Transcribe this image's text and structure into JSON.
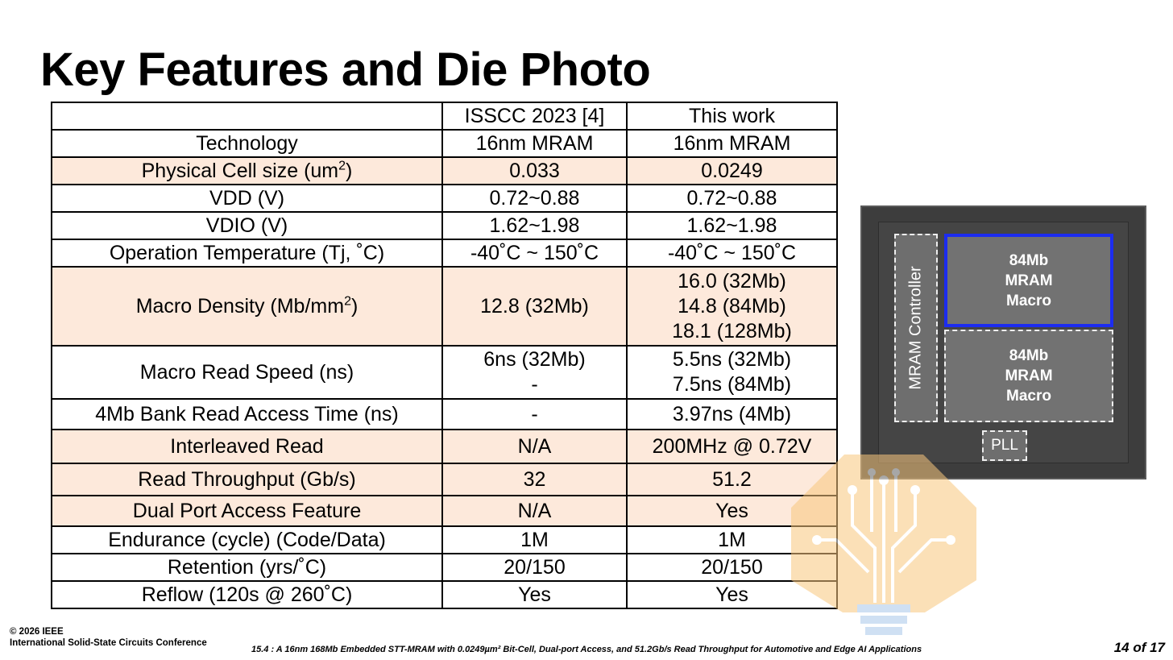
{
  "title": "Key Features and Die Photo",
  "table": {
    "headers": [
      "",
      "ISSCC 2023 [4]",
      "This work"
    ],
    "rows": [
      {
        "param": "Technology",
        "isscc": [
          "16nm MRAM"
        ],
        "work": [
          "16nm MRAM"
        ],
        "hl": false
      },
      {
        "param": "Physical Cell size (um",
        "param_sup": "2",
        "param_tail": ")",
        "isscc": [
          "0.033"
        ],
        "work": [
          "0.0249"
        ],
        "hl": true
      },
      {
        "param": "VDD (V)",
        "isscc": [
          "0.72~0.88"
        ],
        "work": [
          "0.72~0.88"
        ],
        "hl": false
      },
      {
        "param": "VDIO (V)",
        "isscc": [
          "1.62~1.98"
        ],
        "work": [
          "1.62~1.98"
        ],
        "hl": false
      },
      {
        "param": "Operation Temperature (Tj, ˚C)",
        "isscc": [
          "-40˚C ~ 150˚C"
        ],
        "work": [
          "-40˚C ~ 150˚C"
        ],
        "hl": false
      },
      {
        "param": "Macro Density (Mb/mm",
        "param_sup": "2",
        "param_tail": ")",
        "isscc": [
          "12.8 (32Mb)"
        ],
        "work": [
          "16.0 (32Mb)",
          "14.8 (84Mb)",
          "18.1 (128Mb)"
        ],
        "hl": true
      },
      {
        "param": "Macro Read Speed (ns)",
        "isscc": [
          "6ns (32Mb)",
          "-"
        ],
        "work": [
          "5.5ns (32Mb)",
          "7.5ns (84Mb)"
        ],
        "hl": false
      },
      {
        "param": "4Mb Bank Read Access Time (ns)",
        "isscc": [
          "-"
        ],
        "work": [
          "3.97ns (4Mb)"
        ],
        "hl": false
      },
      {
        "param": "Interleaved Read",
        "isscc": [
          "N/A"
        ],
        "work": [
          "200MHz @ 0.72V"
        ],
        "hl": true
      },
      {
        "param": "Read Throughput (Gb/s)",
        "isscc": [
          "32"
        ],
        "work": [
          "51.2"
        ],
        "hl": true
      },
      {
        "param": "Dual Port Access Feature",
        "isscc": [
          "N/A"
        ],
        "work": [
          "Yes"
        ],
        "hl": true
      },
      {
        "param": "Endurance (cycle) (Code/Data)",
        "isscc": [
          "1M"
        ],
        "work": [
          "1M"
        ],
        "hl": false
      },
      {
        "param": "Retention (yrs/˚C)",
        "isscc": [
          "20/150"
        ],
        "work": [
          "20/150"
        ],
        "hl": false
      },
      {
        "param": "Reflow (120s @ 260˚C)",
        "isscc": [
          "Yes"
        ],
        "work": [
          "Yes"
        ],
        "hl": false
      }
    ]
  },
  "die": {
    "controller_label": "MRAM Controller",
    "macro_top": [
      "84Mb",
      "MRAM",
      "Macro"
    ],
    "macro_bottom": [
      "84Mb",
      "MRAM",
      "Macro"
    ],
    "pll_label": "PLL",
    "colors": {
      "highlight_border": "#1c2cf0"
    }
  },
  "logo": {
    "icon": "circuit-tree-lightbulb-icon",
    "colors": {
      "fill": "#f9c77e",
      "base": "#a9c8ea"
    }
  },
  "footer": {
    "copyright": "© 2026 IEEE",
    "conference": "International Solid-State Circuits Conference",
    "paper": "15.4 : A 16nm 168Mb Embedded STT-MRAM with 0.0249µm² Bit-Cell, Dual-port Access, and 51.2Gb/s Read Throughput for Automotive and Edge AI Applications",
    "page": "14 of 17"
  },
  "colors": {
    "row_highlight": "#fde9db"
  }
}
